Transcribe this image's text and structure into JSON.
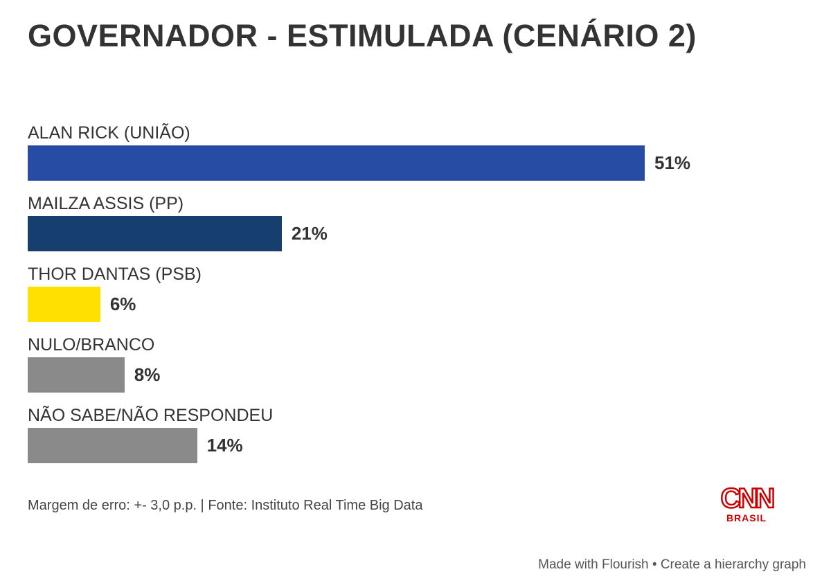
{
  "chart_data": {
    "type": "bar",
    "orientation": "horizontal",
    "title": "GOVERNADOR - ESTIMULADA (CENÁRIO 2)",
    "categories": [
      "ALAN RICK (UNIÃO)",
      "MAILZA ASSIS (PP)",
      "THOR DANTAS (PSB)",
      "NULO/BRANCO",
      "NÃO SABE/NÃO RESPONDEU"
    ],
    "values": [
      51,
      21,
      6,
      8,
      14
    ],
    "value_labels": [
      "51%",
      "21%",
      "6%",
      "8%",
      "14%"
    ],
    "colors": [
      "#264ca3",
      "#163e6e",
      "#ffe000",
      "#8a8a8a",
      "#8a8a8a"
    ],
    "unit": "%",
    "grid": false
  },
  "note": "Margem de erro: +- 3,0 p.p. | Fonte: Instituto Real Time Big Data",
  "logo": {
    "main": "CNN",
    "sub": "BRASIL"
  },
  "footer": {
    "made_with": "Made with Flourish",
    "separator": "•",
    "create": "Create a hierarchy graph"
  }
}
